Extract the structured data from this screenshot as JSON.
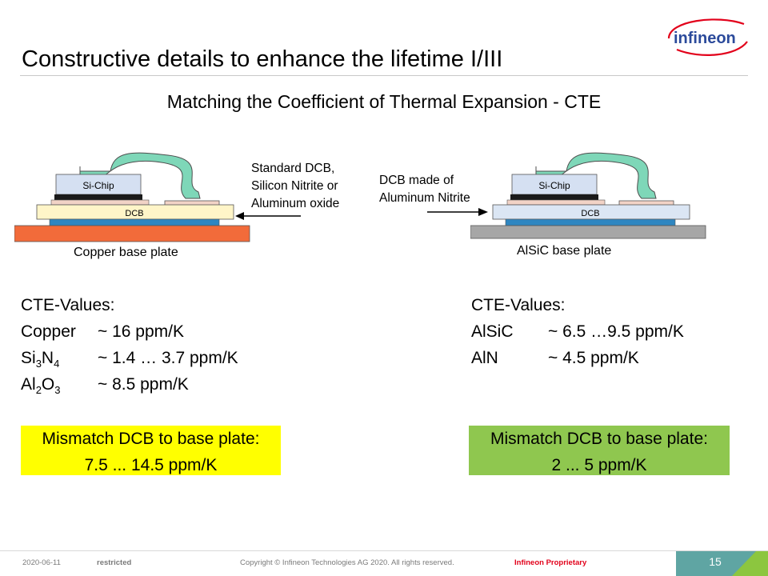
{
  "slide": {
    "title": "Constructive details to enhance the lifetime I/III",
    "subtitle": "Matching the Coefficient of Thermal Expansion - CTE",
    "logo_text": "infineon"
  },
  "left_diagram": {
    "chip_label": "Si-Chip",
    "dcb_label": "DCB",
    "base_label": "Copper base plate",
    "annotation_lines": [
      "Standard DCB,",
      "Silicon Nitrite or",
      "Aluminum oxide"
    ]
  },
  "right_diagram": {
    "chip_label": "Si-Chip",
    "dcb_label": "DCB",
    "base_label": "AlSiC base plate",
    "annotation_lines": [
      "DCB made of",
      "Aluminum Nitrite"
    ]
  },
  "left_cte": {
    "heading": "CTE-Values:",
    "rows": [
      {
        "material": "Copper",
        "value": "~ 16 ppm/K"
      },
      {
        "material_main": "Si",
        "sub1": "3",
        "mid": "N",
        "sub2": "4",
        "value": "~ 1.4 … 3.7 ppm/K"
      },
      {
        "material_main": "Al",
        "sub1": "2",
        "mid": "O",
        "sub2": "3",
        "value": "~ 8.5 ppm/K"
      }
    ],
    "mismatch_label": "Mismatch DCB to base plate:",
    "mismatch_value": "7.5 ... 14.5 ppm/K",
    "highlight_color": "#ffff00"
  },
  "right_cte": {
    "heading": "CTE-Values:",
    "rows": [
      {
        "material": "AlSiC",
        "value": "~ 6.5 …9.5 ppm/K"
      },
      {
        "material": "AlN",
        "value": "~ 4.5 ppm/K"
      }
    ],
    "mismatch_label": "Mismatch DCB to base plate:",
    "mismatch_value": "2 ... 5 ppm/K",
    "highlight_color": "#8fc74f"
  },
  "footer": {
    "date": "2020-06-11",
    "classification": "restricted",
    "copyright": "Copyright © Infineon Technologies AG 2020. All rights reserved.",
    "proprietary": "Infineon Proprietary",
    "page_number": "15"
  }
}
